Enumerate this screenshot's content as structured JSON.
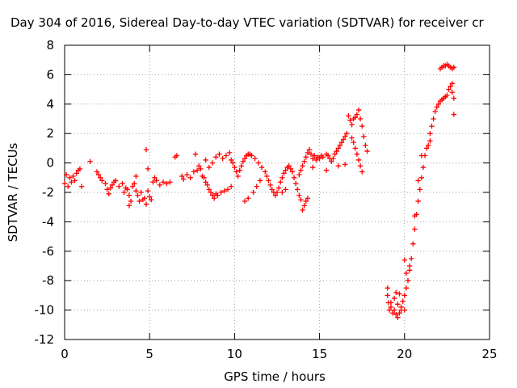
{
  "chart_data": {
    "type": "scatter",
    "title": "Day 304 of 2016, Sidereal Day-to-day VTEC variation (SDTVAR) for receiver cr",
    "xlabel": "GPS time / hours",
    "ylabel": "SDTVAR / TECUs",
    "xlim": [
      0,
      25
    ],
    "ylim": [
      -12,
      8
    ],
    "xticks": [
      0,
      5,
      10,
      15,
      20,
      25
    ],
    "yticks": [
      -12,
      -10,
      -8,
      -6,
      -4,
      -2,
      0,
      2,
      4,
      6,
      8
    ],
    "grid": true,
    "marker": "+",
    "color": "#ff0000",
    "series": [
      {
        "name": "SDTVAR",
        "points": [
          [
            0.0,
            -1.4
          ],
          [
            0.1,
            -0.8
          ],
          [
            0.2,
            -1.6
          ],
          [
            0.3,
            -1.0
          ],
          [
            0.4,
            -1.3
          ],
          [
            0.5,
            -0.9
          ],
          [
            0.6,
            -1.2
          ],
          [
            0.7,
            -0.7
          ],
          [
            0.8,
            -0.5
          ],
          [
            0.9,
            -0.4
          ],
          [
            1.0,
            -1.6
          ],
          [
            1.5,
            0.1
          ],
          [
            1.9,
            -0.6
          ],
          [
            2.0,
            -0.8
          ],
          [
            2.1,
            -1.0
          ],
          [
            2.2,
            -1.2
          ],
          [
            2.4,
            -1.4
          ],
          [
            2.5,
            -1.8
          ],
          [
            2.6,
            -2.1
          ],
          [
            2.7,
            -1.7
          ],
          [
            2.8,
            -1.5
          ],
          [
            2.9,
            -1.3
          ],
          [
            3.0,
            -1.2
          ],
          [
            3.2,
            -1.6
          ],
          [
            3.4,
            -1.4
          ],
          [
            3.5,
            -2.0
          ],
          [
            3.6,
            -1.7
          ],
          [
            3.7,
            -1.8
          ],
          [
            3.8,
            -2.2
          ],
          [
            3.9,
            -2.6
          ],
          [
            4.0,
            -1.6
          ],
          [
            4.1,
            -1.4
          ],
          [
            4.2,
            -1.9
          ],
          [
            4.3,
            -2.2
          ],
          [
            4.4,
            -2.6
          ],
          [
            4.5,
            -2.0
          ],
          [
            4.6,
            -2.5
          ],
          [
            4.7,
            -2.4
          ],
          [
            4.8,
            -2.8
          ],
          [
            4.9,
            -1.9
          ],
          [
            5.0,
            -2.3
          ],
          [
            5.1,
            -2.5
          ],
          [
            5.2,
            -1.3
          ],
          [
            5.3,
            -1.0
          ],
          [
            5.4,
            -1.2
          ],
          [
            5.6,
            -1.5
          ],
          [
            5.8,
            -1.3
          ],
          [
            6.0,
            -1.4
          ],
          [
            6.2,
            -1.3
          ],
          [
            4.8,
            0.9
          ],
          [
            4.2,
            -0.9
          ],
          [
            4.9,
            -0.4
          ],
          [
            3.8,
            -2.9
          ],
          [
            6.5,
            0.4
          ],
          [
            6.6,
            0.5
          ],
          [
            6.9,
            -0.9
          ],
          [
            7.0,
            -1.1
          ],
          [
            7.2,
            -0.8
          ],
          [
            7.4,
            -1.0
          ],
          [
            7.6,
            -0.6
          ],
          [
            7.7,
            0.6
          ],
          [
            7.8,
            -0.5
          ],
          [
            7.9,
            -0.2
          ],
          [
            8.0,
            -0.4
          ],
          [
            8.1,
            -0.9
          ],
          [
            8.2,
            -1.0
          ],
          [
            8.3,
            -1.3
          ],
          [
            8.4,
            -1.5
          ],
          [
            8.5,
            -1.8
          ],
          [
            8.6,
            -2.0
          ],
          [
            8.7,
            -2.2
          ],
          [
            8.8,
            -2.4
          ],
          [
            8.9,
            -2.1
          ],
          [
            9.0,
            -2.2
          ],
          [
            9.2,
            -2.0
          ],
          [
            9.4,
            -1.9
          ],
          [
            9.6,
            -1.8
          ],
          [
            9.8,
            -1.6
          ],
          [
            8.3,
            0.2
          ],
          [
            8.5,
            -0.3
          ],
          [
            8.7,
            0.0
          ],
          [
            8.9,
            0.4
          ],
          [
            9.1,
            0.6
          ],
          [
            9.3,
            0.3
          ],
          [
            9.5,
            0.5
          ],
          [
            9.7,
            0.7
          ],
          [
            9.8,
            0.2
          ],
          [
            9.9,
            0.0
          ],
          [
            10.0,
            -0.3
          ],
          [
            10.1,
            -0.6
          ],
          [
            10.2,
            -0.9
          ],
          [
            10.3,
            -0.5
          ],
          [
            10.4,
            -0.2
          ],
          [
            10.5,
            0.1
          ],
          [
            10.6,
            0.3
          ],
          [
            10.7,
            0.5
          ],
          [
            10.8,
            0.6
          ],
          [
            10.9,
            0.6
          ],
          [
            11.0,
            0.5
          ],
          [
            11.2,
            0.3
          ],
          [
            11.4,
            0.0
          ],
          [
            11.6,
            -0.3
          ],
          [
            11.8,
            -0.6
          ],
          [
            11.9,
            -0.9
          ],
          [
            12.0,
            -1.2
          ],
          [
            12.1,
            -1.5
          ],
          [
            12.2,
            -1.8
          ],
          [
            12.3,
            -2.0
          ],
          [
            12.4,
            -2.2
          ],
          [
            12.5,
            -2.0
          ],
          [
            12.6,
            -1.7
          ],
          [
            12.7,
            -1.3
          ],
          [
            12.8,
            -1.0
          ],
          [
            12.9,
            -0.7
          ],
          [
            13.0,
            -0.5
          ],
          [
            13.1,
            -0.3
          ],
          [
            13.2,
            -0.2
          ],
          [
            13.3,
            -0.4
          ],
          [
            13.4,
            -0.6
          ],
          [
            13.5,
            -1.0
          ],
          [
            13.6,
            -1.4
          ],
          [
            13.7,
            -1.8
          ],
          [
            13.8,
            -2.2
          ],
          [
            13.9,
            -2.5
          ],
          [
            14.0,
            -3.2
          ],
          [
            14.1,
            -2.9
          ],
          [
            14.2,
            -2.6
          ],
          [
            14.3,
            -2.4
          ],
          [
            11.3,
            -1.6
          ],
          [
            11.1,
            -2.0
          ],
          [
            10.8,
            -2.4
          ],
          [
            10.6,
            -2.6
          ],
          [
            11.5,
            -1.2
          ],
          [
            12.8,
            -2.0
          ],
          [
            13.0,
            -1.8
          ],
          [
            13.8,
            -0.8
          ],
          [
            13.9,
            -0.5
          ],
          [
            14.0,
            -0.2
          ],
          [
            14.1,
            0.1
          ],
          [
            14.2,
            0.4
          ],
          [
            14.3,
            0.7
          ],
          [
            14.4,
            0.9
          ],
          [
            14.5,
            0.6
          ],
          [
            14.6,
            0.3
          ],
          [
            14.7,
            0.5
          ],
          [
            14.8,
            0.2
          ],
          [
            14.9,
            0.4
          ],
          [
            15.0,
            0.3
          ],
          [
            15.1,
            0.5
          ],
          [
            15.2,
            0.4
          ],
          [
            15.4,
            0.6
          ],
          [
            15.5,
            0.5
          ],
          [
            15.6,
            0.3
          ],
          [
            15.7,
            0.1
          ],
          [
            15.8,
            0.3
          ],
          [
            15.9,
            0.6
          ],
          [
            16.0,
            0.8
          ],
          [
            16.1,
            1.0
          ],
          [
            16.2,
            1.2
          ],
          [
            16.3,
            1.4
          ],
          [
            16.4,
            1.6
          ],
          [
            16.5,
            1.8
          ],
          [
            16.6,
            2.0
          ],
          [
            16.7,
            3.2
          ],
          [
            16.8,
            2.9
          ],
          [
            16.9,
            2.6
          ],
          [
            17.0,
            3.0
          ],
          [
            17.1,
            3.1
          ],
          [
            17.2,
            3.3
          ],
          [
            17.3,
            3.6
          ],
          [
            17.4,
            3.0
          ],
          [
            17.5,
            2.5
          ],
          [
            17.6,
            1.8
          ],
          [
            17.7,
            1.2
          ],
          [
            17.8,
            0.8
          ],
          [
            16.9,
            1.7
          ],
          [
            17.0,
            1.4
          ],
          [
            17.1,
            1.0
          ],
          [
            17.2,
            0.6
          ],
          [
            17.3,
            0.2
          ],
          [
            17.4,
            -0.2
          ],
          [
            17.5,
            -0.6
          ],
          [
            16.1,
            -0.2
          ],
          [
            15.4,
            -0.5
          ],
          [
            16.5,
            -0.1
          ],
          [
            14.6,
            -0.3
          ],
          [
            19.0,
            -8.5
          ],
          [
            19.05,
            -9.5
          ],
          [
            19.1,
            -10.0
          ],
          [
            19.2,
            -9.8
          ],
          [
            19.3,
            -10.2
          ],
          [
            19.4,
            -10.0
          ],
          [
            19.5,
            -10.3
          ],
          [
            19.6,
            -10.5
          ],
          [
            19.7,
            -10.2
          ],
          [
            19.8,
            -9.8
          ],
          [
            19.9,
            -9.4
          ],
          [
            20.0,
            -9.0
          ],
          [
            20.1,
            -8.5
          ],
          [
            20.2,
            -8.0
          ],
          [
            20.3,
            -7.3
          ],
          [
            20.4,
            -6.5
          ],
          [
            20.5,
            -5.5
          ],
          [
            20.6,
            -4.5
          ],
          [
            20.7,
            -3.5
          ],
          [
            20.8,
            -2.6
          ],
          [
            20.9,
            -1.8
          ],
          [
            21.0,
            -1.0
          ],
          [
            21.1,
            -0.3
          ],
          [
            21.2,
            0.5
          ],
          [
            21.3,
            1.0
          ],
          [
            19.0,
            -9.0
          ],
          [
            19.2,
            -9.5
          ],
          [
            19.4,
            -9.2
          ],
          [
            19.6,
            -9.6
          ],
          [
            19.8,
            -10.0
          ],
          [
            20.0,
            -10.0
          ],
          [
            19.5,
            -8.8
          ],
          [
            19.7,
            -8.9
          ],
          [
            20.0,
            -6.6
          ],
          [
            20.1,
            -7.5
          ],
          [
            20.3,
            -7.0
          ],
          [
            20.6,
            -3.6
          ],
          [
            20.8,
            -1.2
          ],
          [
            21.0,
            0.5
          ],
          [
            21.5,
            2.0
          ],
          [
            21.6,
            2.5
          ],
          [
            21.7,
            3.0
          ],
          [
            21.8,
            3.5
          ],
          [
            21.9,
            3.8
          ],
          [
            22.0,
            4.0
          ],
          [
            22.1,
            4.2
          ],
          [
            22.2,
            4.3
          ],
          [
            22.3,
            4.4
          ],
          [
            22.4,
            4.5
          ],
          [
            22.5,
            4.6
          ],
          [
            22.6,
            5.0
          ],
          [
            22.7,
            5.2
          ],
          [
            22.8,
            4.8
          ],
          [
            22.9,
            3.3
          ],
          [
            22.9,
            4.4
          ],
          [
            22.8,
            5.4
          ],
          [
            21.4,
            1.2
          ],
          [
            21.5,
            1.5
          ],
          [
            22.1,
            6.4
          ],
          [
            22.2,
            6.5
          ],
          [
            22.3,
            6.6
          ],
          [
            22.4,
            6.6
          ],
          [
            22.5,
            6.7
          ],
          [
            22.6,
            6.6
          ],
          [
            22.7,
            6.5
          ],
          [
            22.8,
            6.4
          ],
          [
            22.9,
            6.5
          ]
        ]
      }
    ]
  }
}
